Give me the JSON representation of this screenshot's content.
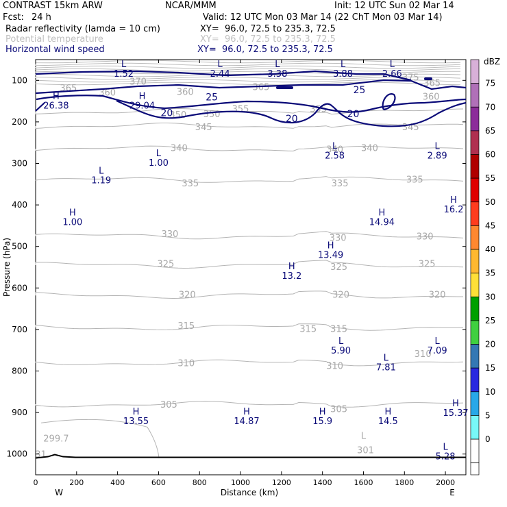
{
  "header": {
    "model": "CONTRAST 15km ARW",
    "org": "NCAR/MMM",
    "init": "Init: 12 UTC Sun 02 Mar 14",
    "fcst_label": "Fcst:",
    "fcst_value": "24 h",
    "valid": "Valid: 12 UTC Mon 03 Mar 14 (22 ChT Mon 03 Mar 14)",
    "layers": [
      {
        "label": "Radar reflectivity (lamda = 10 cm)",
        "xy": "XY=  96.0, 72.5 to 235.3, 72.5",
        "color": "#000000"
      },
      {
        "label": "Potential temperature",
        "xy": "XY=  96.0, 72.5 to 235.3, 72.5",
        "color": "#c0c0c0"
      },
      {
        "label": "Horizontal wind speed",
        "xy": "XY=  96.0, 72.5 to 235.3, 72.5",
        "color": "#0a0a78"
      }
    ]
  },
  "chart_data": {
    "type": "contour-cross-section",
    "xlabel": "Distance (km)",
    "ylabel": "Pressure (hPa)",
    "xlim": [
      0,
      2100
    ],
    "ylim": [
      1050,
      50
    ],
    "xticks": [
      0,
      200,
      400,
      600,
      800,
      1000,
      1200,
      1400,
      1600,
      1800,
      2000
    ],
    "yticks": [
      100,
      200,
      300,
      400,
      500,
      600,
      700,
      800,
      900,
      1000
    ],
    "x_end_labels": {
      "left": "W",
      "right": "E"
    },
    "colorbar": {
      "unit": "dBZ",
      "levels": [
        75,
        70,
        65,
        60,
        55,
        50,
        45,
        40,
        35,
        30,
        25,
        20,
        15,
        10,
        5,
        0
      ],
      "colors": [
        "#d8b0d8",
        "#b070b8",
        "#8c2c9a",
        "#b03050",
        "#b00000",
        "#e00000",
        "#ff3c1e",
        "#ff8830",
        "#ffb830",
        "#ffe038",
        "#00a000",
        "#40d040",
        "#3478b4",
        "#2828e0",
        "#28a8e8",
        "#78f8f8",
        "#ffffff"
      ]
    },
    "theta_contours": [
      {
        "label": "350",
        "p": 175
      },
      {
        "label": "345",
        "p": 210
      },
      {
        "label": "340",
        "p": 265
      },
      {
        "label": "335",
        "p": 340
      },
      {
        "label": "330",
        "p": 475
      },
      {
        "label": "325",
        "p": 545
      },
      {
        "label": "320",
        "p": 618
      },
      {
        "label": "315",
        "p": 695
      },
      {
        "label": "310",
        "p": 780
      },
      {
        "label": "305",
        "p": 880
      }
    ],
    "theta_labels": [
      {
        "text": "360",
        "x": 350,
        "p": 128
      },
      {
        "text": "365",
        "x": 160,
        "p": 118
      },
      {
        "text": "360",
        "x": 730,
        "p": 127
      },
      {
        "text": "370",
        "x": 500,
        "p": 102
      },
      {
        "text": "365",
        "x": 1935,
        "p": 105
      },
      {
        "text": "360",
        "x": 1930,
        "p": 138
      },
      {
        "text": "375",
        "x": 1830,
        "p": 92
      },
      {
        "text": "365",
        "x": 1100,
        "p": 115
      },
      {
        "text": "355",
        "x": 1000,
        "p": 168
      },
      {
        "text": "355",
        "x": 1380,
        "p": 168
      },
      {
        "text": "350",
        "x": 860,
        "p": 180
      },
      {
        "text": "350",
        "x": 695,
        "p": 182
      },
      {
        "text": "345",
        "x": 1830,
        "p": 212
      },
      {
        "text": "345",
        "x": 820,
        "p": 212
      },
      {
        "text": "340",
        "x": 700,
        "p": 262
      },
      {
        "text": "340",
        "x": 1630,
        "p": 262
      },
      {
        "text": "340",
        "x": 1460,
        "p": 265
      },
      {
        "text": "335",
        "x": 755,
        "p": 347
      },
      {
        "text": "335",
        "x": 1485,
        "p": 347
      },
      {
        "text": "335",
        "x": 1850,
        "p": 338
      },
      {
        "text": "330",
        "x": 655,
        "p": 469
      },
      {
        "text": "330",
        "x": 1475,
        "p": 478
      },
      {
        "text": "330",
        "x": 1900,
        "p": 475
      },
      {
        "text": "325",
        "x": 635,
        "p": 541
      },
      {
        "text": "325",
        "x": 1480,
        "p": 548
      },
      {
        "text": "325",
        "x": 1910,
        "p": 541
      },
      {
        "text": "320",
        "x": 740,
        "p": 615
      },
      {
        "text": "320",
        "x": 1490,
        "p": 615
      },
      {
        "text": "320",
        "x": 1960,
        "p": 615
      },
      {
        "text": "315",
        "x": 735,
        "p": 690
      },
      {
        "text": "315",
        "x": 1330,
        "p": 698
      },
      {
        "text": "315",
        "x": 1480,
        "p": 698
      },
      {
        "text": "310",
        "x": 735,
        "p": 780
      },
      {
        "text": "310",
        "x": 1460,
        "p": 787
      },
      {
        "text": "310",
        "x": 1890,
        "p": 758
      },
      {
        "text": "305",
        "x": 650,
        "p": 880
      },
      {
        "text": "305",
        "x": 1480,
        "p": 891
      },
      {
        "text": "299.7",
        "x": 100,
        "p": 962
      },
      {
        "text": "301",
        "x": 1610,
        "p": 990
      },
      {
        "text": "L",
        "x": 1600,
        "p": 955
      },
      {
        "text": "31",
        "x": 25,
        "p": 1000
      }
    ],
    "extrema": [
      {
        "kind": "L",
        "value": "1.52",
        "x": 430,
        "p": 68,
        "color": "#0a0a78"
      },
      {
        "kind": "L",
        "value": "2.44",
        "x": 900,
        "p": 68,
        "color": "#0a0a78"
      },
      {
        "kind": "L",
        "value": "3.38",
        "x": 1180,
        "p": 68,
        "color": "#0a0a78"
      },
      {
        "kind": "L",
        "value": "3.88",
        "x": 1500,
        "p": 68,
        "color": "#0a0a78"
      },
      {
        "kind": "L",
        "value": "2.66",
        "x": 1740,
        "p": 68,
        "color": "#0a0a78"
      },
      {
        "kind": "H",
        "value": "26.38",
        "x": 100,
        "p": 145,
        "color": "#0a0a78"
      },
      {
        "kind": "H",
        "value": "29.04",
        "x": 520,
        "p": 145,
        "color": "#0a0a78"
      },
      {
        "kind": "L",
        "value": "2.58",
        "x": 1460,
        "p": 265,
        "color": "#0a0a78"
      },
      {
        "kind": "L",
        "value": "2.89",
        "x": 1960,
        "p": 265,
        "color": "#0a0a78"
      },
      {
        "kind": "L",
        "value": "1.00",
        "x": 600,
        "p": 283,
        "color": "#0a0a78"
      },
      {
        "kind": "L",
        "value": "1.19",
        "x": 320,
        "p": 325,
        "color": "#0a0a78"
      },
      {
        "kind": "H",
        "value": "1.00",
        "x": 180,
        "p": 425,
        "color": "#0a0a78"
      },
      {
        "kind": "H",
        "value": "16.2",
        "x": 2040,
        "p": 395,
        "color": "#0a0a78"
      },
      {
        "kind": "H",
        "value": "14.94",
        "x": 1690,
        "p": 425,
        "color": "#0a0a78"
      },
      {
        "kind": "H",
        "value": "13.49",
        "x": 1440,
        "p": 505,
        "color": "#0a0a78"
      },
      {
        "kind": "H",
        "value": "13.2",
        "x": 1250,
        "p": 555,
        "color": "#0a0a78"
      },
      {
        "kind": "L",
        "value": "5.90",
        "x": 1490,
        "p": 735,
        "color": "#0a0a78"
      },
      {
        "kind": "L",
        "value": "7.09",
        "x": 1960,
        "p": 735,
        "color": "#0a0a78"
      },
      {
        "kind": "L",
        "value": "7.81",
        "x": 1710,
        "p": 775,
        "color": "#0a0a78"
      },
      {
        "kind": "H",
        "value": "15.37",
        "x": 2050,
        "p": 885,
        "color": "#0a0a78"
      },
      {
        "kind": "H",
        "value": "13.55",
        "x": 490,
        "p": 905,
        "color": "#0a0a78"
      },
      {
        "kind": "H",
        "value": "14.87",
        "x": 1030,
        "p": 905,
        "color": "#0a0a78"
      },
      {
        "kind": "H",
        "value": "15.9",
        "x": 1400,
        "p": 905,
        "color": "#0a0a78"
      },
      {
        "kind": "H",
        "value": "14.5",
        "x": 1720,
        "p": 905,
        "color": "#0a0a78"
      },
      {
        "kind": "L",
        "value": "5.28",
        "x": 2000,
        "p": 990,
        "color": "#0a0a78"
      }
    ],
    "wind_contour_labels": [
      {
        "text": "25",
        "x": 860,
        "p": 140
      },
      {
        "text": "25",
        "x": 1580,
        "p": 123
      },
      {
        "text": "20",
        "x": 640,
        "p": 178
      },
      {
        "text": "20",
        "x": 1250,
        "p": 192
      },
      {
        "text": "20",
        "x": 1550,
        "p": 180
      }
    ],
    "terrain_pressure": 1008
  }
}
